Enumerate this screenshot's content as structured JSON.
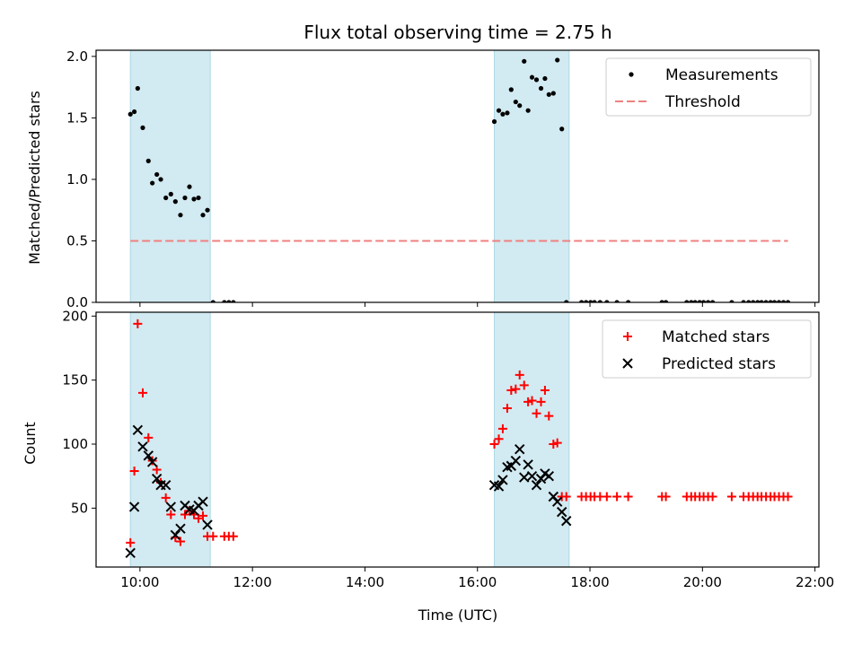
{
  "chart_data": [
    {
      "type": "scatter",
      "title": "Flux total observing time = 2.75 h",
      "xlabel": "",
      "ylabel": "Matched/Predicted stars",
      "xlim_hours": [
        9.22,
        22.07
      ],
      "ylim": [
        0,
        2.05
      ],
      "yticks": [
        0,
        0.5,
        1.0,
        1.5,
        2.0
      ],
      "ytick_labels": [
        "0.0",
        "0.5",
        "1.0",
        "1.5",
        "2.0"
      ],
      "shaded_regions": [
        [
          9.83,
          11.25
        ],
        [
          16.3,
          17.63
        ]
      ],
      "shade_color": "#add8e6",
      "legend_position": "upper right",
      "series": [
        {
          "name": "Measurements",
          "kind": "points",
          "color": "#000000",
          "x": [
            9.83,
            9.9,
            9.96,
            10.05,
            10.15,
            10.22,
            10.3,
            10.37,
            10.46,
            10.55,
            10.63,
            10.72,
            10.8,
            10.88,
            10.96,
            11.04,
            11.12,
            11.2,
            11.3,
            11.5,
            11.58,
            11.66,
            16.3,
            16.38,
            16.45,
            16.53,
            16.6,
            16.68,
            16.75,
            16.83,
            16.9,
            16.97,
            17.05,
            17.13,
            17.2,
            17.27,
            17.35,
            17.42,
            17.5,
            17.58,
            17.85,
            17.93,
            18.01,
            18.08,
            18.18,
            18.3,
            18.48,
            18.68,
            19.28,
            19.35,
            19.72,
            19.8,
            19.87,
            19.95,
            20.02,
            20.1,
            20.18,
            20.52,
            20.73,
            20.82,
            20.9,
            20.98,
            21.05,
            21.13,
            21.21,
            21.28,
            21.36,
            21.44,
            21.52
          ],
          "y": [
            1.53,
            1.55,
            1.74,
            1.42,
            1.15,
            0.97,
            1.04,
            1.0,
            0.85,
            0.88,
            0.82,
            0.71,
            0.85,
            0.94,
            0.84,
            0.85,
            0.71,
            0.75,
            0,
            0,
            0,
            0,
            1.47,
            1.56,
            1.53,
            1.54,
            1.73,
            1.63,
            1.6,
            1.96,
            1.56,
            1.83,
            1.81,
            1.74,
            1.82,
            1.69,
            1.7,
            1.97,
            1.41,
            0,
            0,
            0,
            0,
            0,
            0,
            0,
            0,
            0,
            0,
            0,
            0,
            0,
            0,
            0,
            0,
            0,
            0,
            0,
            0,
            0,
            0,
            0,
            0,
            0,
            0,
            0,
            0,
            0,
            0
          ]
        },
        {
          "name": "Threshold",
          "kind": "dashed-line",
          "color": "#f08080",
          "x": [
            9.83,
            21.52
          ],
          "y": [
            0.5,
            0.5
          ]
        }
      ]
    },
    {
      "type": "scatter",
      "title": "",
      "xlabel": "Time (UTC)",
      "ylabel": "Count",
      "xlim_hours": [
        9.22,
        22.07
      ],
      "ylim": [
        4,
        203
      ],
      "yticks": [
        50,
        100,
        150,
        200
      ],
      "ytick_labels": [
        "50",
        "100",
        "150",
        "200"
      ],
      "xticks_hours": [
        10,
        12,
        14,
        16,
        18,
        20,
        22
      ],
      "xtick_labels": [
        "10:00",
        "12:00",
        "14:00",
        "16:00",
        "18:00",
        "20:00",
        "22:00"
      ],
      "shaded_regions": [
        [
          9.83,
          11.25
        ],
        [
          16.3,
          17.63
        ]
      ],
      "shade_color": "#add8e6",
      "legend_position": "upper right",
      "series": [
        {
          "name": "Matched stars",
          "kind": "plus",
          "color": "#ff0000",
          "x": [
            9.83,
            9.9,
            9.96,
            10.05,
            10.15,
            10.22,
            10.3,
            10.37,
            10.46,
            10.55,
            10.63,
            10.72,
            10.8,
            10.88,
            10.96,
            11.04,
            11.12,
            11.2,
            11.3,
            11.5,
            11.58,
            11.66,
            16.3,
            16.38,
            16.45,
            16.53,
            16.6,
            16.68,
            16.75,
            16.83,
            16.9,
            16.97,
            17.05,
            17.13,
            17.2,
            17.27,
            17.35,
            17.42,
            17.5,
            17.58,
            17.85,
            17.93,
            18.01,
            18.08,
            18.18,
            18.3,
            18.48,
            18.68,
            19.28,
            19.35,
            19.72,
            19.8,
            19.87,
            19.95,
            20.02,
            20.1,
            20.18,
            20.52,
            20.73,
            20.82,
            20.9,
            20.98,
            21.05,
            21.13,
            21.21,
            21.28,
            21.36,
            21.44,
            21.52
          ],
          "y": [
            23,
            79,
            194,
            140,
            105,
            87,
            80,
            70,
            58,
            45,
            27,
            24,
            45,
            48,
            45,
            42,
            44,
            28,
            28,
            28,
            28,
            28,
            100,
            104,
            112,
            128,
            142,
            143,
            154,
            146,
            133,
            134,
            124,
            133,
            142,
            122,
            100,
            101,
            59,
            59,
            59,
            59,
            59,
            59,
            59,
            59,
            59,
            59,
            59,
            59,
            59,
            59,
            59,
            59,
            59,
            59,
            59,
            59,
            59,
            59,
            59,
            59,
            59,
            59,
            59,
            59,
            59,
            59,
            59
          ]
        },
        {
          "name": "Predicted stars",
          "kind": "cross",
          "color": "#000000",
          "x": [
            9.83,
            9.9,
            9.96,
            10.05,
            10.15,
            10.22,
            10.3,
            10.37,
            10.46,
            10.55,
            10.63,
            10.72,
            10.8,
            10.88,
            10.96,
            11.04,
            11.12,
            11.2,
            16.3,
            16.38,
            16.45,
            16.53,
            16.6,
            16.68,
            16.75,
            16.83,
            16.9,
            16.97,
            17.05,
            17.13,
            17.2,
            17.27,
            17.35,
            17.42,
            17.5,
            17.58
          ],
          "y": [
            15,
            51,
            111,
            98,
            91,
            86,
            73,
            68,
            68,
            51,
            29,
            34,
            52,
            49,
            48,
            52,
            55,
            37,
            68,
            67,
            72,
            82,
            83,
            87,
            96,
            74,
            84,
            75,
            68,
            73,
            77,
            75,
            59,
            55,
            47,
            40
          ]
        }
      ]
    }
  ]
}
